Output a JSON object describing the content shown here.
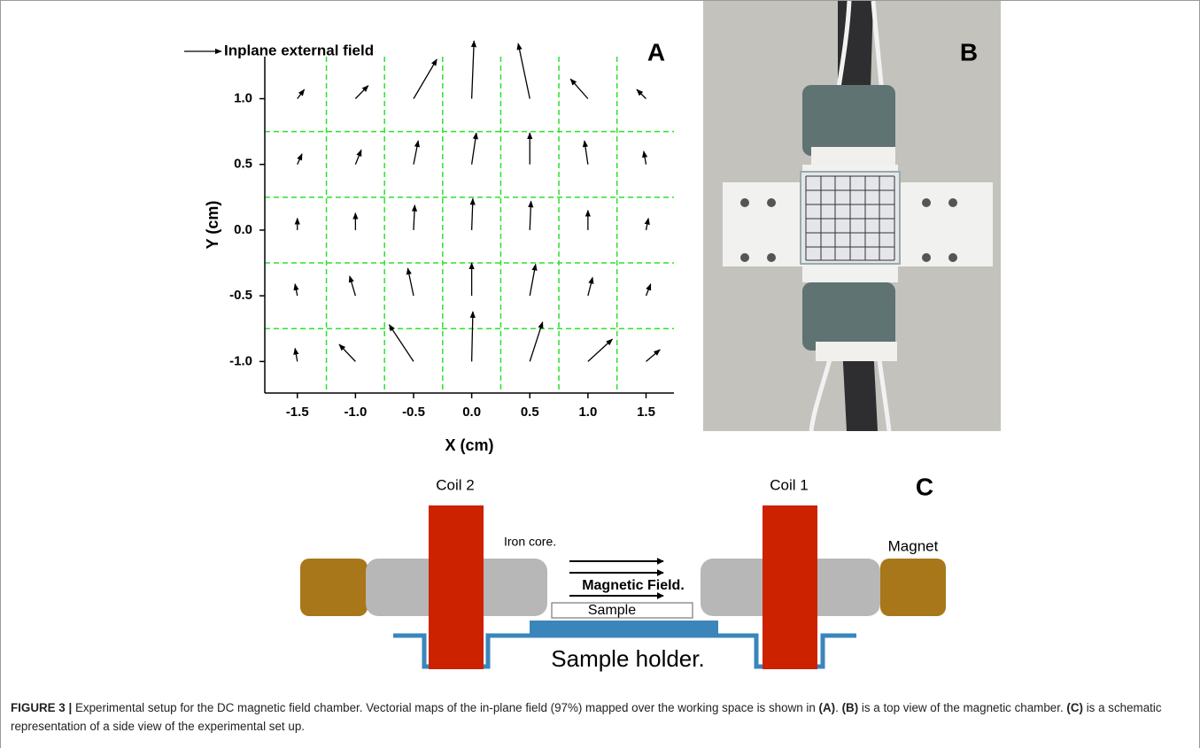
{
  "chart_data": {
    "type": "quiver",
    "panel_label": "A",
    "legend": "Inplane external field",
    "xlabel": "X (cm)",
    "ylabel": "Y (cm)",
    "xlim": [
      -1.78,
      1.74
    ],
    "ylim": [
      -1.24,
      1.32
    ],
    "xticks": [
      -1.5,
      {
        "value": -1,
        "label": "-1.0"
      },
      -0.5,
      {
        "value": 0,
        "label": "0.0"
      },
      0.5,
      {
        "value": 1,
        "label": "1.0"
      },
      1.5
    ],
    "yticks": [
      {
        "value": -1,
        "label": "-1.0"
      },
      -0.5,
      {
        "value": 0,
        "label": "0.0"
      },
      0.5,
      {
        "value": 1,
        "label": "1.0"
      }
    ],
    "grid_x": [
      -1.25,
      -0.75,
      -0.25,
      0.25,
      0.75,
      1.25
    ],
    "grid_y": [
      -0.75,
      -0.25,
      0.25,
      0.75
    ],
    "grid_color": "#2ee02e",
    "color": "#000000",
    "x": [
      -1.5,
      -1,
      -0.5,
      0,
      0.5,
      1,
      1.5,
      -1.5,
      -1,
      -0.5,
      0,
      0.5,
      1,
      1.5,
      -1.5,
      -1,
      -0.5,
      0,
      0.5,
      1,
      1.5,
      -1.5,
      -1,
      -0.5,
      0,
      0.5,
      1,
      1.5,
      -1.5,
      -1,
      -0.5,
      0,
      0.5,
      1,
      1.5
    ],
    "y": [
      1,
      1,
      1,
      1,
      1,
      1,
      1,
      0.5,
      0.5,
      0.5,
      0.5,
      0.5,
      0.5,
      0.5,
      0,
      0,
      0,
      0,
      0,
      0,
      0,
      -0.5,
      -0.5,
      -0.5,
      -0.5,
      -0.5,
      -0.5,
      -0.5,
      -1,
      -1,
      -1,
      -1,
      -1,
      -1,
      -1
    ],
    "u": [
      0.06,
      0.11,
      0.2,
      0.02,
      -0.1,
      -0.15,
      -0.08,
      0.04,
      0.05,
      0.04,
      0.04,
      0,
      -0.03,
      -0.02,
      0,
      0,
      0.01,
      0.01,
      0.01,
      0,
      0.02,
      -0.02,
      -0.05,
      -0.05,
      0,
      0.05,
      0.04,
      0.04,
      -0.02,
      -0.14,
      -0.21,
      0.01,
      0.11,
      0.21,
      0.12
    ],
    "v": [
      0.07,
      0.1,
      0.3,
      0.44,
      0.42,
      0.15,
      0.07,
      0.08,
      0.11,
      0.18,
      0.24,
      0.24,
      0.18,
      0.1,
      0.09,
      0.13,
      0.19,
      0.24,
      0.22,
      0.15,
      0.09,
      0.09,
      0.15,
      0.21,
      0.25,
      0.24,
      0.14,
      0.09,
      0.1,
      0.13,
      0.28,
      0.38,
      0.3,
      0.17,
      0.09
    ]
  },
  "photo": {
    "panel_label": "B"
  },
  "schematic": {
    "panel_label": "C",
    "coil_left": "Coil 2",
    "coil_right": "Coil 1",
    "core": "Iron core.",
    "field": "Magnetic Field.",
    "sample": "Sample",
    "magnet": "Magnet",
    "holder": "Sample holder."
  },
  "caption": {
    "figure_label": "FIGURE 3 |",
    "parts": [
      "Experimental setup for the DC magnetic field chamber. Vectorial maps of the in-plane field (97%) mapped over the working space is shown in ",
      "(A)",
      ". ",
      "(B)",
      " is a top view of the magnetic chamber. ",
      "(C)",
      " is a schematic representation of a side view of the experimental set up."
    ]
  }
}
